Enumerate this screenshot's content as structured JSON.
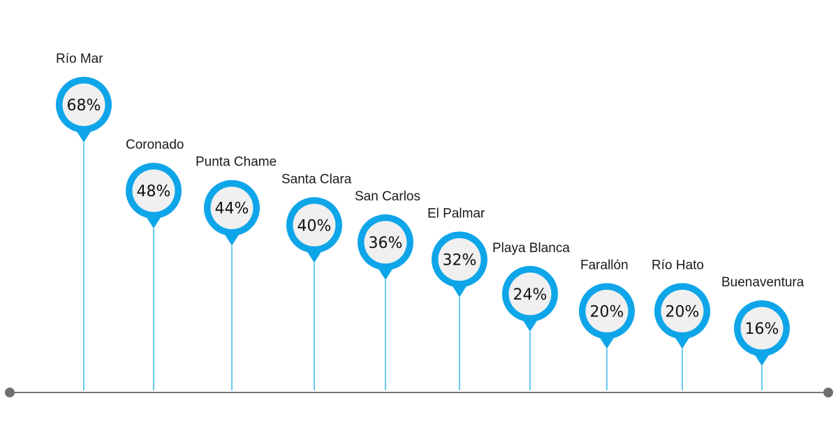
{
  "chart_data": {
    "type": "bar",
    "style": "lollipop-pins",
    "title": "",
    "xlabel": "",
    "ylabel": "",
    "unit": "%",
    "categories": [
      "Río Mar",
      "Coronado",
      "Punta Chame",
      "Santa Clara",
      "San Carlos",
      "El Palmar",
      "Playa Blanca",
      "Farallón",
      "Río Hato",
      "Buenaventura"
    ],
    "values": [
      68,
      48,
      44,
      40,
      36,
      32,
      24,
      20,
      20,
      16
    ],
    "value_labels": [
      "68%",
      "48%",
      "44%",
      "40%",
      "36%",
      "32%",
      "24%",
      "20%",
      "20%",
      "16%"
    ],
    "grid": false,
    "legend": "none"
  },
  "colors": {
    "pin_ring": "#0ea5e9",
    "pin_fill": "#f0f0f0",
    "stem": "#38b6ec",
    "axis": "#777777",
    "axis_dot": "#707070",
    "label_text": "#1a1a1a",
    "value_text": "#111111"
  }
}
